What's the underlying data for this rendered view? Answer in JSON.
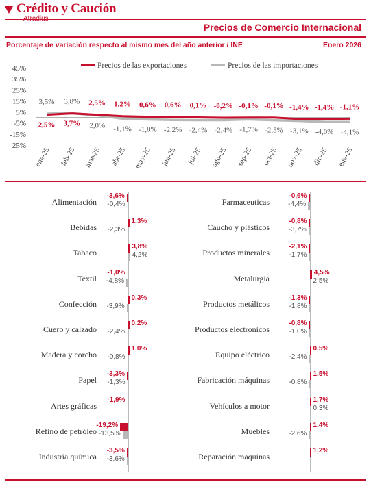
{
  "header": {
    "brand_name": "Crédito y Caución",
    "brand_sub": "Atradius",
    "title": "Precios de Comercio Internacional",
    "subtitle": "Porcentaje de variación respecto al mismo mes del año anterior / INE",
    "period": "Enero 2026"
  },
  "colors": {
    "accent": "#c8102e",
    "exports": "#c8102e",
    "imports": "#b8b8b8"
  },
  "chart_data": [
    {
      "type": "line",
      "title": "",
      "xlabel": "",
      "ylabel": "",
      "categories": [
        "ene-25",
        "feb-25",
        "mar-25",
        "abr-25",
        "may-25",
        "jun-25",
        "jul-25",
        "ago-25",
        "sep-25",
        "oct-25",
        "nov-25",
        "dic-25",
        "ene-26"
      ],
      "series": [
        {
          "name": "Precios de las exportaciones",
          "values": [
            2.5,
            3.7,
            2.5,
            1.2,
            0.6,
            0.6,
            0.1,
            -0.2,
            -0.1,
            -0.1,
            -1.4,
            -1.4,
            -1.1
          ],
          "labels": [
            "2,5%",
            "3,7%",
            "2,5%",
            "1,2%",
            "0,6%",
            "0,6%",
            "0,1%",
            "-0,2%",
            "-0,1%",
            "-0,1%",
            "-1,4%",
            "-1,4%",
            "-1,1%"
          ]
        },
        {
          "name": "Precios de las importaciones",
          "values": [
            3.5,
            3.8,
            2.0,
            -1.1,
            -1.8,
            -2.2,
            -2.4,
            -2.4,
            -1.7,
            -2.5,
            -3.1,
            -4.0,
            -4.1
          ],
          "labels": [
            "3,5%",
            "3,8%",
            "2,0%",
            "-1,1%",
            "-1,8%",
            "-2,2%",
            "-2,4%",
            "-2,4%",
            "-1,7%",
            "-2,5%",
            "-3,1%",
            "-4,0%",
            "-4,1%"
          ]
        }
      ],
      "ylim": [
        -25,
        45
      ],
      "yticks": [
        "45%",
        "35%",
        "25%",
        "15%",
        "5%",
        "-5%",
        "-15%",
        "-25%"
      ],
      "ytick_values": [
        45,
        35,
        25,
        15,
        5,
        -5,
        -15,
        -25
      ],
      "grid": false,
      "legend": "top"
    },
    {
      "type": "bar",
      "title": "",
      "series_names": [
        "Precios de las exportaciones",
        "Precios de las importaciones"
      ],
      "left": [
        {
          "label": "Alimentación",
          "exp": -3.6,
          "exp_label": "-3,6%",
          "imp": -0.4,
          "imp_label": "-0,4%"
        },
        {
          "label": "Bebidas",
          "exp": 1.3,
          "exp_label": "1,3%",
          "imp": -2.3,
          "imp_label": "-2,3%"
        },
        {
          "label": "Tabaco",
          "exp": 3.8,
          "exp_label": "3,8%",
          "imp": 4.2,
          "imp_label": "4,2%"
        },
        {
          "label": "Textil",
          "exp": -1.0,
          "exp_label": "-1,0%",
          "imp": -4.8,
          "imp_label": "-4,8%"
        },
        {
          "label": "Confección",
          "exp": 0.3,
          "exp_label": "0,3%",
          "imp": -3.9,
          "imp_label": "-3,9%"
        },
        {
          "label": "Cuero y calzado",
          "exp": 0.2,
          "exp_label": "0,2%",
          "imp": -2.4,
          "imp_label": "-2,4%"
        },
        {
          "label": "Madera y corcho",
          "exp": 1.0,
          "exp_label": "1,0%",
          "imp": -0.8,
          "imp_label": "-0,8%"
        },
        {
          "label": "Papel",
          "exp": -3.3,
          "exp_label": "-3,3%",
          "imp": -1.3,
          "imp_label": "-1,3%"
        },
        {
          "label": "Artes gráficas",
          "exp": -1.9,
          "exp_label": "-1,9%",
          "imp": 0,
          "imp_label": ""
        },
        {
          "label": "Refino de petróleo",
          "exp": -19.2,
          "exp_label": "-19,2%",
          "imp": -13.5,
          "imp_label": "-13,5%"
        },
        {
          "label": "Industria química",
          "exp": -3.5,
          "exp_label": "-3,5%",
          "imp": -3.6,
          "imp_label": "-3,6%"
        }
      ],
      "right": [
        {
          "label": "Farmaceuticas",
          "exp": -0.6,
          "exp_label": "-0,6%",
          "imp": -4.4,
          "imp_label": "-4,4%"
        },
        {
          "label": "Caucho y plásticos",
          "exp": -0.8,
          "exp_label": "-0,8%",
          "imp": -3.7,
          "imp_label": "-3,7%"
        },
        {
          "label": "Productos minerales",
          "exp": -2.1,
          "exp_label": "-2,1%",
          "imp": -1.7,
          "imp_label": "-1,7%"
        },
        {
          "label": "Metalurgia",
          "exp": 4.5,
          "exp_label": "4,5%",
          "imp": 2.5,
          "imp_label": "2,5%"
        },
        {
          "label": "Productos metálicos",
          "exp": -1.3,
          "exp_label": "-1,3%",
          "imp": -1.8,
          "imp_label": "-1,8%"
        },
        {
          "label": "Productos electrónicos",
          "exp": -0.8,
          "exp_label": "-0,8%",
          "imp": -1.0,
          "imp_label": "-1,0%"
        },
        {
          "label": "Equipo eléctrico",
          "exp": 0.5,
          "exp_label": "0,5%",
          "imp": -2.4,
          "imp_label": "-2,4%"
        },
        {
          "label": "Fabricación máquinas",
          "exp": 1.5,
          "exp_label": "1,5%",
          "imp": -0.8,
          "imp_label": "-0,8%"
        },
        {
          "label": "Vehículos a motor",
          "exp": 1.7,
          "exp_label": "1,7%",
          "imp": 0.3,
          "imp_label": "0,3%"
        },
        {
          "label": "Muebles",
          "exp": 1.4,
          "exp_label": "1,4%",
          "imp": -2.6,
          "imp_label": "-2,6%"
        },
        {
          "label": "Reparación maquinas",
          "exp": 1.2,
          "exp_label": "1,2%",
          "imp": 0,
          "imp_label": ""
        }
      ]
    }
  ]
}
